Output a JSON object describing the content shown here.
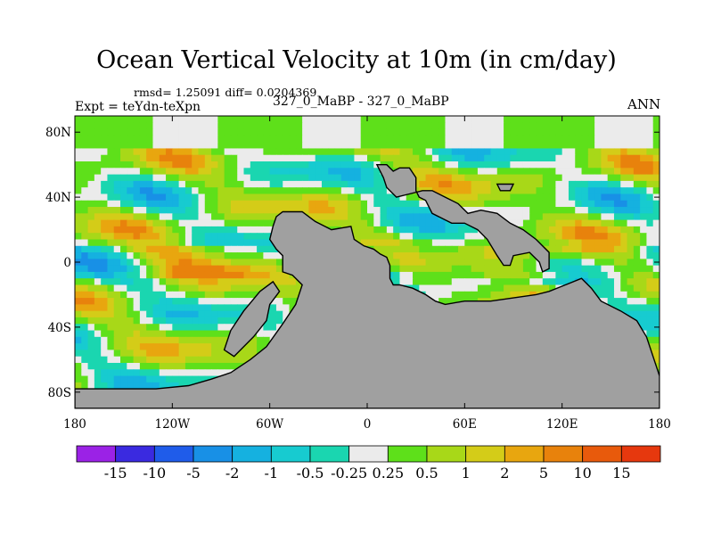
{
  "header": {
    "title": "Ocean Vertical Velocity at 10m (in cm/day)",
    "stats": "rmsd= 1.25091 diff= 0.0204369",
    "expt": "Expt = teYdn-teXpn",
    "case": "327_0_MaBP - 327_0_MaBP",
    "season": "ANN"
  },
  "chart_data": {
    "type": "heatmap",
    "title": "Ocean Vertical Velocity at 10m (in cm/day)",
    "units": "cm/day",
    "x_range": [
      -180,
      180
    ],
    "y_range": [
      -90,
      90
    ],
    "x_ticks": [
      -180,
      -120,
      -60,
      0,
      60,
      120,
      180
    ],
    "x_tick_labels": [
      "180",
      "120W",
      "60W",
      "0",
      "60E",
      "120E",
      "180"
    ],
    "y_ticks": [
      80,
      40,
      0,
      -40,
      -80
    ],
    "y_tick_labels": [
      "80N",
      "40N",
      "0",
      "40S",
      "80S"
    ],
    "colorbar": {
      "boundaries": [
        "-15",
        "-10",
        "-5",
        "-2",
        "-1",
        "-0.5",
        "-0.25",
        "0.25",
        "0.5",
        "1",
        "2",
        "5",
        "10",
        "15"
      ],
      "colors": [
        "#9b22e6",
        "#3a2ae0",
        "#1f5cea",
        "#1890e6",
        "#15b1e0",
        "#17cbd0",
        "#1ad6b0",
        "#ebebeb",
        "#5ee01a",
        "#a8d818",
        "#d4cc18",
        "#e8a60f",
        "#e8820c",
        "#e85a0c",
        "#e6380e"
      ]
    },
    "land_color": "#a0a0a0"
  }
}
